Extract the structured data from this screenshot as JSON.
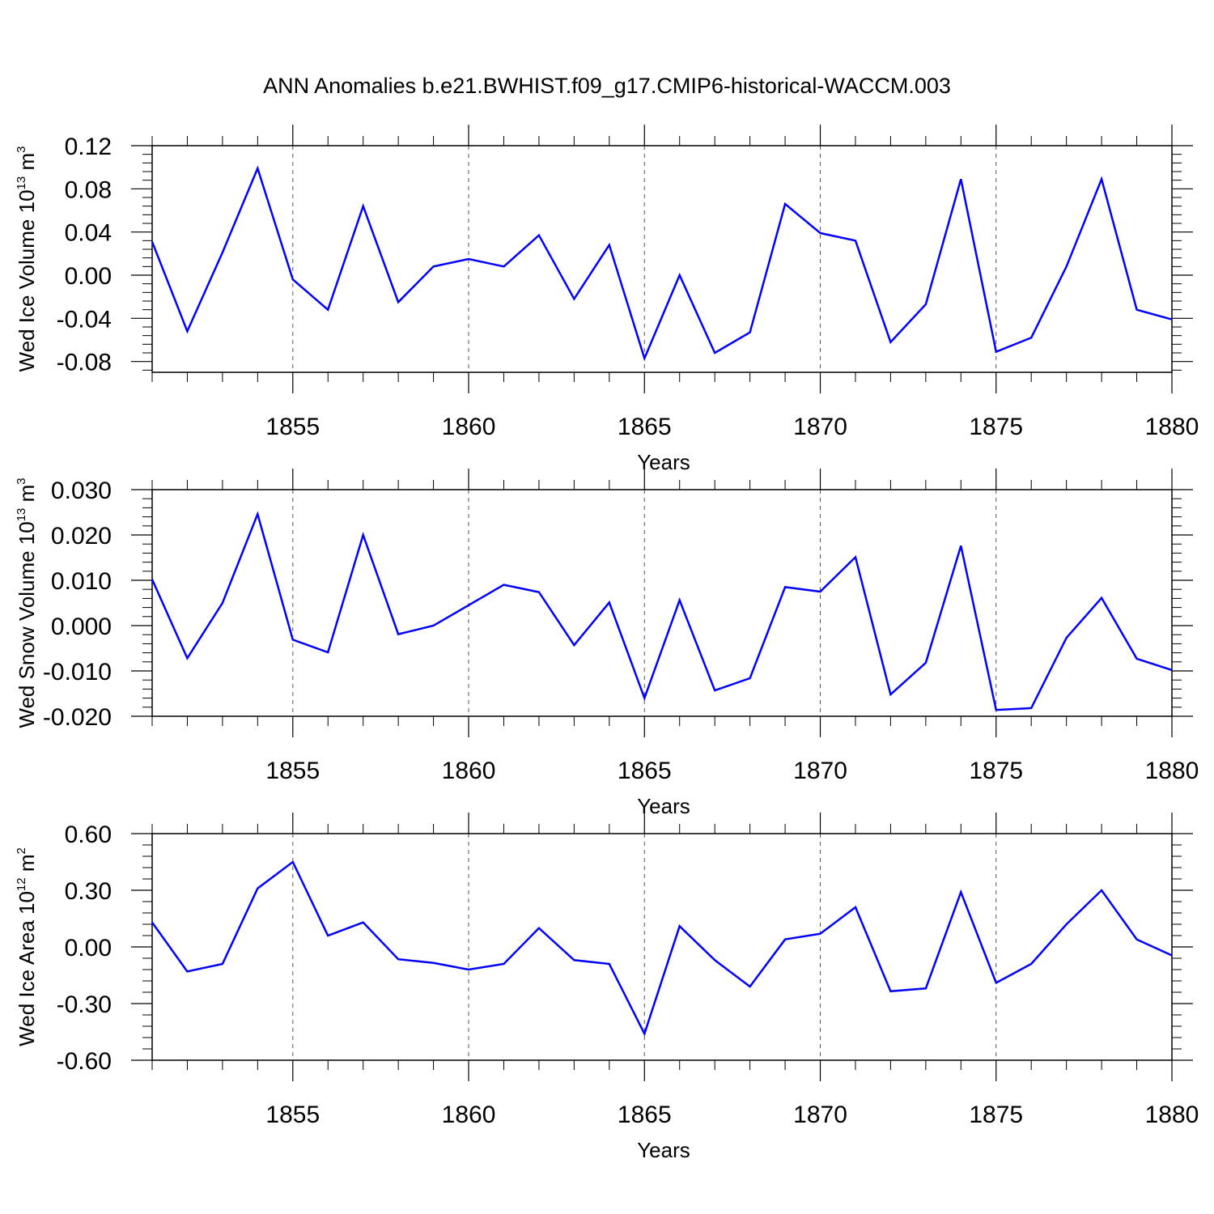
{
  "title": "ANN Anomalies b.e21.BWHIST.f09_g17.CMIP6-historical-WACCM.003",
  "colors": {
    "series": "#0000ff",
    "axes": "#000000",
    "grid": "#555555"
  },
  "chart_data": [
    {
      "type": "line",
      "ylabel": {
        "text": "Wed Ice Volume 10",
        "exp": "13",
        "unit": "m",
        "unit_exp": "3"
      },
      "xlabel": "Years",
      "xlim": [
        1851,
        1880
      ],
      "ylim": [
        -0.09,
        0.12
      ],
      "yticks": [
        0.12,
        0.08,
        0.04,
        0.0,
        -0.04,
        -0.08
      ],
      "ytick_labels": [
        "0.12",
        "0.08",
        "0.04",
        "0.00",
        "-0.04",
        "-0.08"
      ],
      "xticks": [
        1855,
        1860,
        1865,
        1870,
        1875,
        1880
      ],
      "xtick_labels": [
        "1855",
        "1860",
        "1865",
        "1870",
        "1875",
        "1880"
      ],
      "grid": "vertical dashed at major x ticks",
      "x": [
        1851,
        1852,
        1853,
        1854,
        1855,
        1856,
        1857,
        1858,
        1859,
        1860,
        1861,
        1862,
        1863,
        1864,
        1865,
        1866,
        1867,
        1868,
        1869,
        1870,
        1871,
        1872,
        1873,
        1874,
        1875,
        1876,
        1877,
        1878,
        1879,
        1880
      ],
      "y": [
        0.031,
        -0.052,
        0.021,
        0.099,
        -0.004,
        -0.032,
        0.064,
        -0.025,
        0.008,
        0.015,
        0.008,
        0.037,
        -0.022,
        0.028,
        -0.077,
        0.0,
        -0.072,
        -0.053,
        0.066,
        0.039,
        0.032,
        -0.062,
        -0.027,
        0.089,
        -0.071,
        -0.058,
        0.008,
        0.089,
        -0.032,
        -0.041
      ]
    },
    {
      "type": "line",
      "ylabel": {
        "text": "Wed Snow Volume 10",
        "exp": "13",
        "unit": "m",
        "unit_exp": "3"
      },
      "xlabel": "Years",
      "xlim": [
        1851,
        1880
      ],
      "ylim": [
        -0.02,
        0.03
      ],
      "yticks": [
        0.03,
        0.02,
        0.01,
        0.0,
        -0.01,
        -0.02
      ],
      "ytick_labels": [
        "0.030",
        "0.020",
        "0.010",
        "0.000",
        "-0.010",
        "-0.020"
      ],
      "xticks": [
        1855,
        1860,
        1865,
        1870,
        1875,
        1880
      ],
      "xtick_labels": [
        "1855",
        "1860",
        "1865",
        "1870",
        "1875",
        "1880"
      ],
      "grid": "vertical dashed at major x ticks",
      "x": [
        1851,
        1852,
        1853,
        1854,
        1855,
        1856,
        1857,
        1858,
        1859,
        1860,
        1861,
        1862,
        1863,
        1864,
        1865,
        1866,
        1867,
        1868,
        1869,
        1870,
        1871,
        1872,
        1873,
        1874,
        1875,
        1876,
        1877,
        1878,
        1879,
        1880
      ],
      "y": [
        0.0102,
        -0.0072,
        0.005,
        0.0246,
        -0.0031,
        -0.0059,
        0.02,
        -0.0019,
        0.0,
        0.0045,
        0.009,
        0.0074,
        -0.0043,
        0.0051,
        -0.016,
        0.0056,
        -0.0143,
        -0.0116,
        0.0085,
        0.0075,
        0.0151,
        -0.0152,
        -0.0082,
        0.0176,
        -0.0186,
        -0.0182,
        -0.0027,
        0.0061,
        -0.0073,
        -0.0098
      ]
    },
    {
      "type": "line",
      "ylabel": {
        "text": "Wed Ice Area 10",
        "exp": "12",
        "unit": "m",
        "unit_exp": "2"
      },
      "xlabel": "Years",
      "xlim": [
        1851,
        1880
      ],
      "ylim": [
        -0.6,
        0.6
      ],
      "yticks": [
        0.6,
        0.3,
        0.0,
        -0.3,
        -0.6
      ],
      "ytick_labels": [
        "0.60",
        "0.30",
        "0.00",
        "-0.30",
        "-0.60"
      ],
      "xticks": [
        1855,
        1860,
        1865,
        1870,
        1875,
        1880
      ],
      "xtick_labels": [
        "1855",
        "1860",
        "1865",
        "1870",
        "1875",
        "1880"
      ],
      "grid": "vertical dashed at major x ticks",
      "x": [
        1851,
        1852,
        1853,
        1854,
        1855,
        1856,
        1857,
        1858,
        1859,
        1860,
        1861,
        1862,
        1863,
        1864,
        1865,
        1866,
        1867,
        1868,
        1869,
        1870,
        1871,
        1872,
        1873,
        1874,
        1875,
        1876,
        1877,
        1878,
        1879,
        1880
      ],
      "y": [
        0.13,
        -0.13,
        -0.09,
        0.31,
        0.45,
        0.06,
        0.13,
        -0.065,
        -0.085,
        -0.12,
        -0.09,
        0.1,
        -0.07,
        -0.09,
        -0.46,
        0.11,
        -0.07,
        -0.21,
        0.04,
        0.07,
        0.21,
        -0.235,
        -0.22,
        0.29,
        -0.19,
        -0.09,
        0.12,
        0.3,
        0.04,
        -0.045
      ]
    }
  ]
}
